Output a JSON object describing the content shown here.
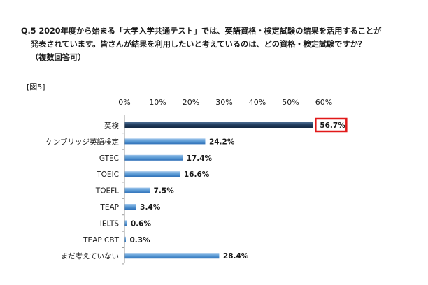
{
  "question": {
    "line1": "Q.5 2020年度から始まる「大学入学共通テスト」では、英語資格・検定試験の結果を活用することが",
    "line2": "発表されています。皆さんが結果を利用したいと考えているのは、どの資格・検定試験ですか？",
    "line3": "（複数回答可）"
  },
  "figure_label": "[図5]",
  "chart_data": {
    "type": "bar",
    "orientation": "horizontal",
    "categories": [
      "英検",
      "ケンブリッジ英語検定",
      "GTEC",
      "TOEIC",
      "TOEFL",
      "TEAP",
      "IELTS",
      "TEAP CBT",
      "まだ考えていない"
    ],
    "values": [
      56.7,
      24.2,
      17.4,
      16.6,
      7.5,
      3.4,
      0.6,
      0.3,
      28.4
    ],
    "value_labels": [
      "56.7%",
      "24.2%",
      "17.4%",
      "16.6%",
      "7.5%",
      "3.4%",
      "0.6%",
      "0.3%",
      "28.4%"
    ],
    "xticks": [
      "0%",
      "10%",
      "20%",
      "30%",
      "40%",
      "50%",
      "60%"
    ],
    "xlim": [
      0,
      60
    ],
    "axis_position": "top",
    "highlight_index": 0,
    "colors": {
      "bar": "#5b9bd5",
      "bar_dark": "#2e6fb7",
      "highlight_bar": "#1f3b5c",
      "highlight_box": "#e11919",
      "axis": "#999999"
    }
  }
}
